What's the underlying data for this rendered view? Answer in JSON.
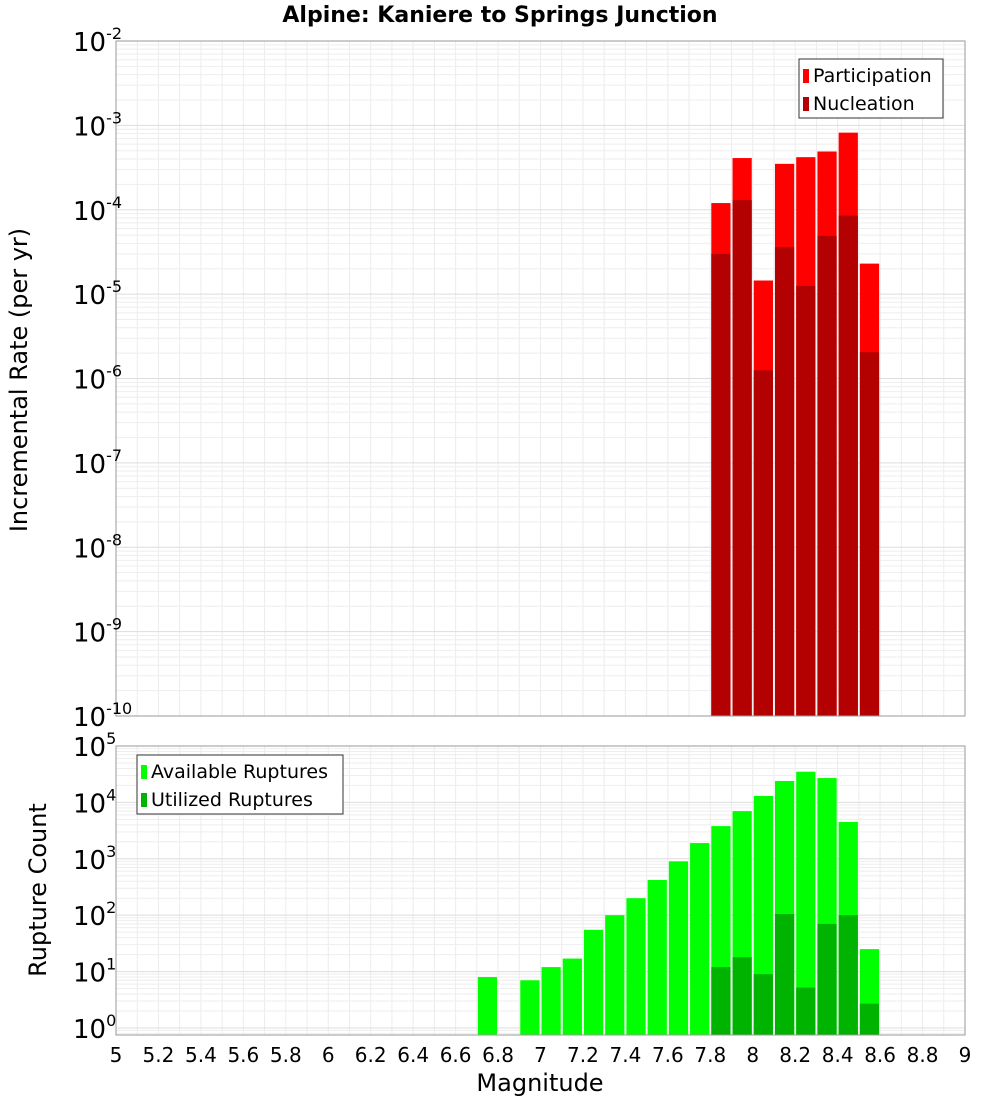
{
  "chart_data": [
    {
      "type": "bar",
      "title": "Alpine: Kaniere to Springs Junction",
      "xlabel": "",
      "ylabel": "Incremental Rate (per yr)",
      "yscale": "log",
      "ylim": [
        1e-10,
        0.01
      ],
      "xlim": [
        5,
        9
      ],
      "ytick_labels": [
        {
          "base": "10",
          "exp": "-10"
        },
        {
          "base": "10",
          "exp": "-9"
        },
        {
          "base": "10",
          "exp": "-8"
        },
        {
          "base": "10",
          "exp": "-7"
        },
        {
          "base": "10",
          "exp": "-6"
        },
        {
          "base": "10",
          "exp": "-5"
        },
        {
          "base": "10",
          "exp": "-4"
        },
        {
          "base": "10",
          "exp": "-3"
        },
        {
          "base": "10",
          "exp": "-2"
        }
      ],
      "grid": true,
      "legend_position": "top-right",
      "x": [
        7.85,
        7.95,
        8.05,
        8.15,
        8.25,
        8.35,
        8.45,
        8.55
      ],
      "series": [
        {
          "name": "Participation",
          "color": "#ff0000",
          "values": [
            0.00012,
            0.00041,
            1.45e-05,
            0.00035,
            0.00042,
            0.00049,
            0.00082,
            2.3e-05
          ]
        },
        {
          "name": "Nucleation",
          "color": "#b30000",
          "values": [
            3e-05,
            0.00013,
            1.25e-06,
            3.6e-05,
            1.25e-05,
            4.9e-05,
            8.5e-05,
            2.05e-06
          ]
        }
      ]
    },
    {
      "type": "bar",
      "xlabel": "Magnitude",
      "ylabel": "Rupture Count",
      "yscale": "log",
      "ylim": [
        0.75,
        100000.0
      ],
      "xlim": [
        5,
        9
      ],
      "ytick_labels": [
        {
          "base": "10",
          "exp": "0"
        },
        {
          "base": "10",
          "exp": "1"
        },
        {
          "base": "10",
          "exp": "2"
        },
        {
          "base": "10",
          "exp": "3"
        },
        {
          "base": "10",
          "exp": "4"
        },
        {
          "base": "10",
          "exp": "5"
        }
      ],
      "xtick_labels": [
        "5",
        "5.2",
        "5.4",
        "5.6",
        "5.8",
        "6",
        "6.2",
        "6.4",
        "6.6",
        "6.8",
        "7",
        "7.2",
        "7.4",
        "7.6",
        "7.8",
        "8",
        "8.2",
        "8.4",
        "8.6",
        "8.8",
        "9"
      ],
      "grid": true,
      "legend_position": "top-left",
      "x": [
        6.75,
        6.95,
        7.05,
        7.15,
        7.25,
        7.35,
        7.45,
        7.55,
        7.65,
        7.75,
        7.85,
        7.95,
        8.05,
        8.15,
        8.25,
        8.35,
        8.45,
        8.55
      ],
      "series": [
        {
          "name": "Available Ruptures",
          "color": "#00ff00",
          "values": [
            8,
            7,
            12,
            17,
            55,
            100,
            200,
            420,
            900,
            1900,
            3800,
            7000,
            13000,
            24000,
            35000,
            27000,
            4500,
            25
          ]
        },
        {
          "name": "Utilized Ruptures",
          "color": "#00b300",
          "values": [
            0,
            0,
            0,
            0,
            0,
            0,
            0,
            0,
            0,
            0,
            12,
            18,
            9,
            105,
            5.2,
            70,
            100,
            2.7
          ]
        }
      ]
    }
  ]
}
